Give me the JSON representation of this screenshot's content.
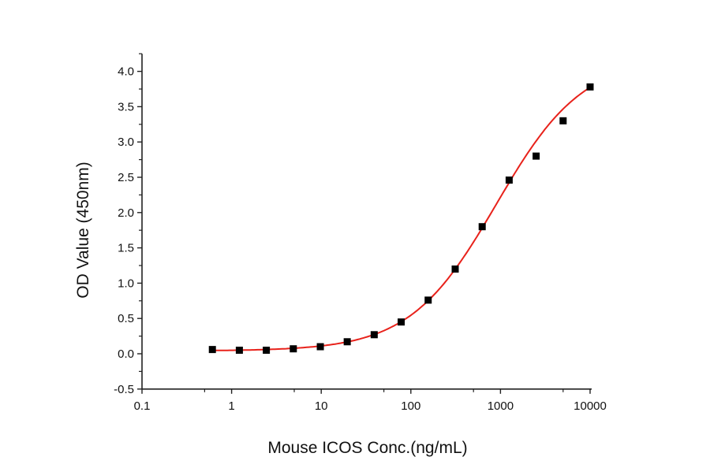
{
  "chart_data": {
    "type": "scatter",
    "title": "",
    "xlabel": "Mouse ICOS Conc.(ng/mL)",
    "ylabel": "OD Value (450nm)",
    "x_scale": "log",
    "xlim": [
      0.1,
      10000
    ],
    "ylim": [
      -0.5,
      4.25
    ],
    "x_ticks": [
      0.1,
      1,
      10,
      100,
      1000,
      10000
    ],
    "x_tick_labels": [
      "0.1",
      "1",
      "10",
      "100",
      "1000",
      "10000"
    ],
    "y_ticks": [
      -0.5,
      0.0,
      0.5,
      1.0,
      1.5,
      2.0,
      2.5,
      3.0,
      3.5,
      4.0
    ],
    "y_tick_labels": [
      "-0.5",
      "0.0",
      "0.5",
      "1.0",
      "1.5",
      "2.0",
      "2.5",
      "3.0",
      "3.5",
      "4.0"
    ],
    "grid": false,
    "series": [
      {
        "marker": "square",
        "color": "#000000",
        "x": [
          0.61,
          1.22,
          2.44,
          4.88,
          9.77,
          19.5,
          39,
          78,
          156,
          312.5,
          625,
          1250,
          2500,
          5000,
          10000
        ],
        "y": [
          0.06,
          0.05,
          0.05,
          0.07,
          0.1,
          0.17,
          0.27,
          0.45,
          0.76,
          1.2,
          1.8,
          2.46,
          2.8,
          3.3,
          3.78
        ]
      }
    ],
    "fit_curve": {
      "model": "4PL",
      "color": "#e8221b",
      "bottom": 0.04,
      "top": 4.2,
      "ec50": 900,
      "hill": 0.9,
      "x_range": [
        0.61,
        10000
      ]
    }
  }
}
